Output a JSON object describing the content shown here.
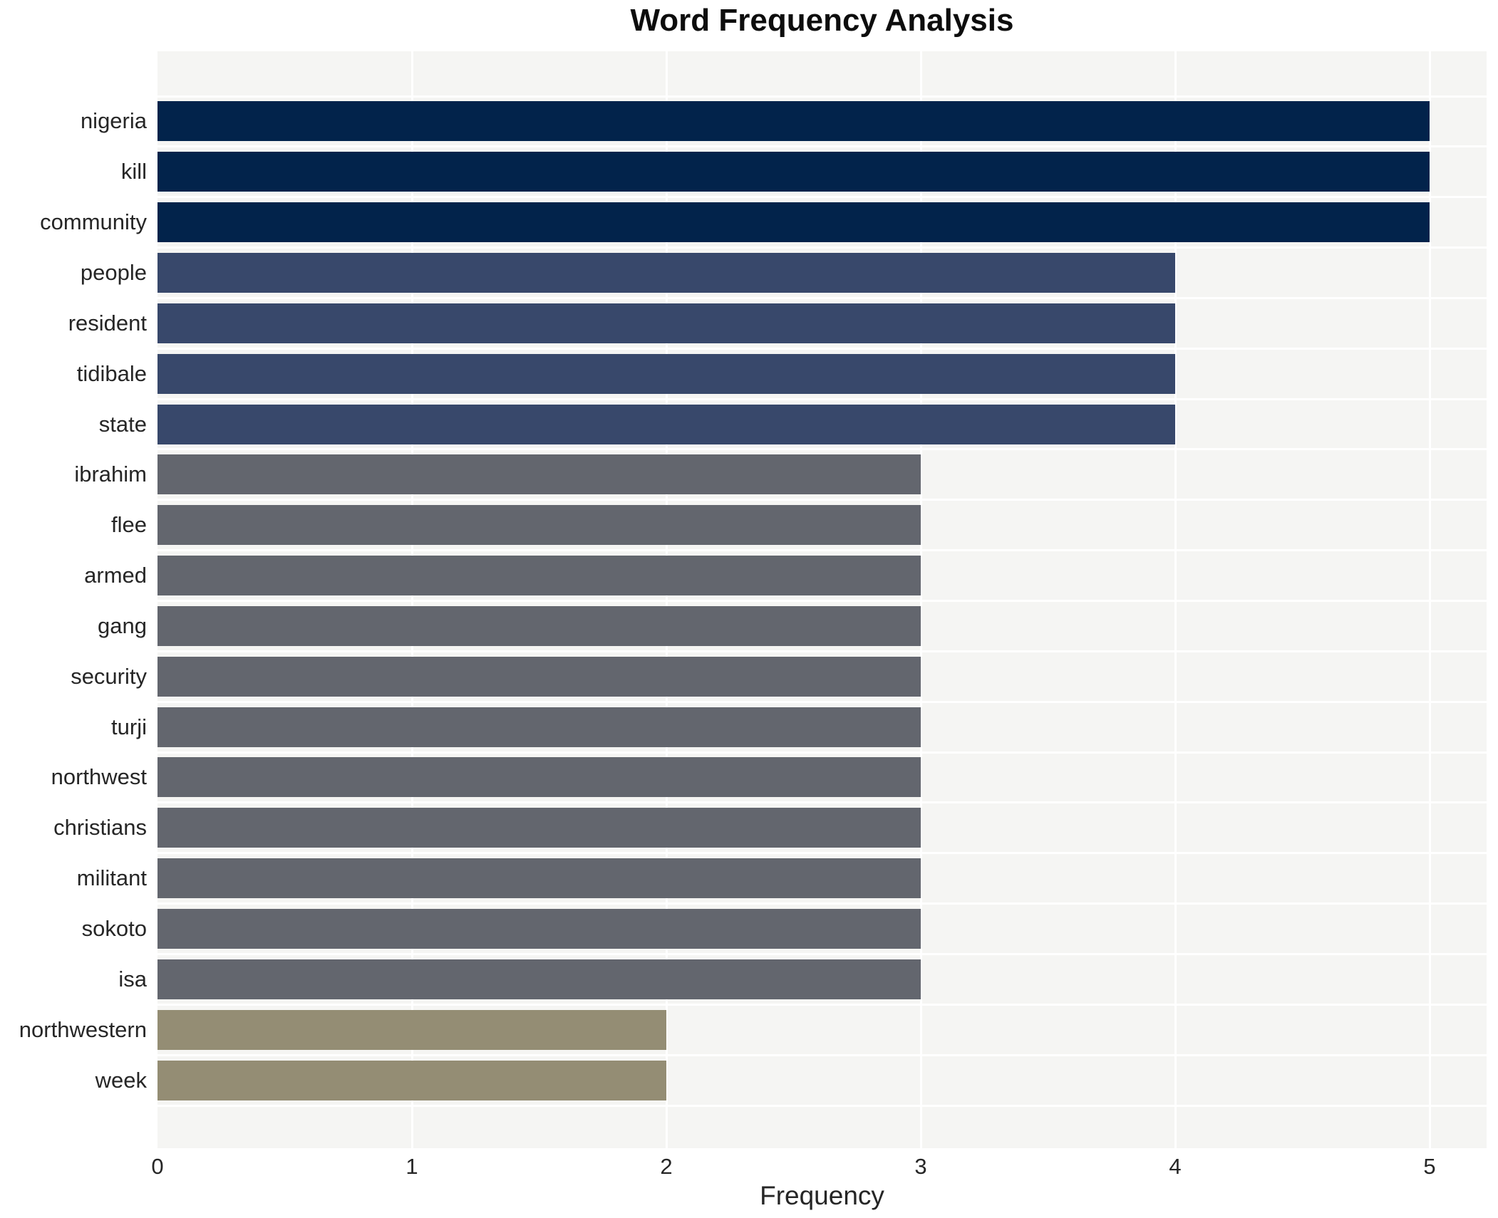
{
  "page": {
    "background": "#ffffff"
  },
  "chart_data": {
    "type": "bar",
    "orientation": "horizontal",
    "title": "Word Frequency Analysis",
    "xlabel": "Frequency",
    "ylabel": "",
    "xlim": [
      0,
      5.22
    ],
    "xticks": [
      "0",
      "1",
      "2",
      "3",
      "4",
      "5"
    ],
    "legend": "none",
    "grid": "white vertical gridlines at each x tick and thin white horizontal gridlines between bars on a light gray panel",
    "panel_background": "#f5f5f3",
    "gridline_color": "#ffffff",
    "text_color": "#262626",
    "title_color": "#0d0d0d",
    "categories": [
      "nigeria",
      "kill",
      "community",
      "people",
      "resident",
      "tidibale",
      "state",
      "ibrahim",
      "flee",
      "armed",
      "gang",
      "security",
      "turji",
      "northwest",
      "christians",
      "militant",
      "sokoto",
      "isa",
      "northwestern",
      "week"
    ],
    "values": [
      5,
      5,
      5,
      4,
      4,
      4,
      4,
      3,
      3,
      3,
      3,
      3,
      3,
      3,
      3,
      3,
      3,
      3,
      2,
      2
    ],
    "bar_colors": [
      "#02234b",
      "#02234b",
      "#02234b",
      "#38486b",
      "#38486b",
      "#38486b",
      "#38486b",
      "#63666e",
      "#63666e",
      "#63666e",
      "#63666e",
      "#63666e",
      "#63666e",
      "#63666e",
      "#63666e",
      "#63666e",
      "#63666e",
      "#63666e",
      "#948d74",
      "#948d74"
    ],
    "color_legend": {
      "frequency_5": "#02234b",
      "frequency_4": "#38486b",
      "frequency_3": "#63666e",
      "frequency_2": "#948d74"
    }
  }
}
